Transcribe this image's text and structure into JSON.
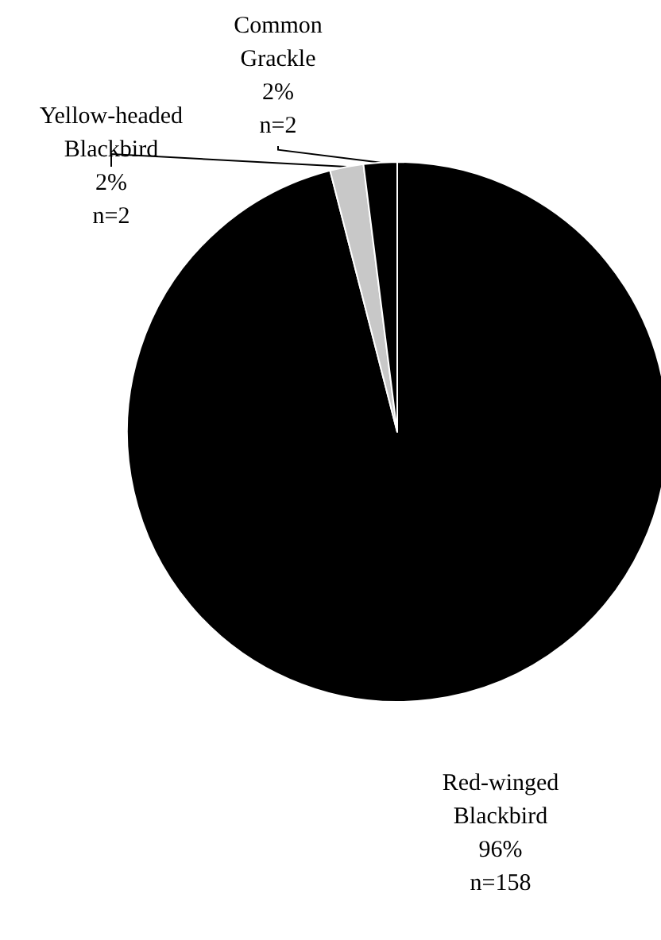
{
  "chart_data": {
    "type": "pie",
    "categories": [
      "Red-winged Blackbird",
      "Yellow-headed Blackbird",
      "Common Grackle"
    ],
    "values": [
      96,
      2,
      2
    ],
    "value_labels": [
      "96%\nn=158",
      "2%\nn=2",
      "2%\nn=2"
    ],
    "colors": [
      "#000000",
      "#c8c8c8",
      "#000000"
    ],
    "legend": false
  }
}
